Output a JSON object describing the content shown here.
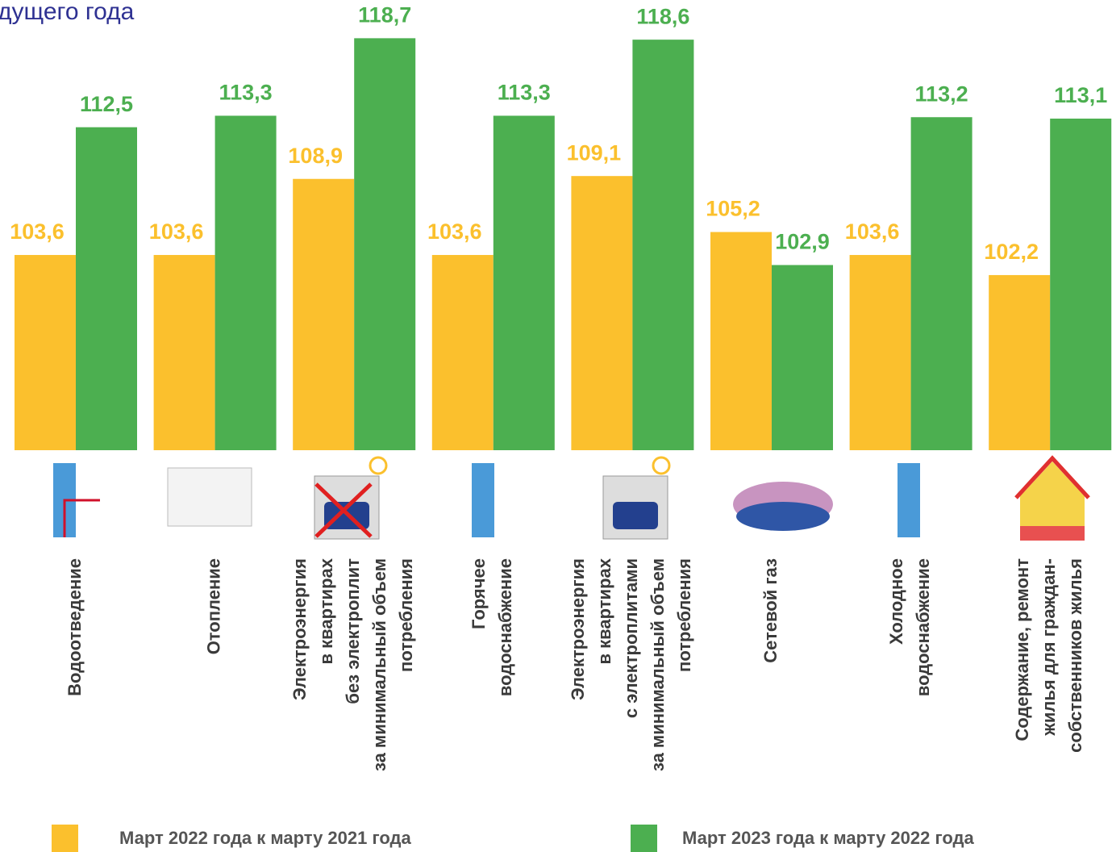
{
  "chart_data": {
    "type": "bar",
    "title": "дущего года",
    "categories": [
      [
        "Водоотведение"
      ],
      [
        "Отопление"
      ],
      [
        "Электроэнергия",
        "в квартирах",
        "без электроплит",
        "за минимальный объем",
        "потребления"
      ],
      [
        "Горячее",
        "водоснабжение"
      ],
      [
        "Электроэнергия",
        "в квартирах",
        "с электроплитами",
        "за минимальный объем",
        "потребления"
      ],
      [
        "Сетевой газ"
      ],
      [
        "Холодное",
        "водоснабжение"
      ],
      [
        "Содержание, ремонт",
        "жилья для граждан-",
        "собственников жилья"
      ]
    ],
    "series": [
      {
        "name": "Март 2022 года к марту 2021 года",
        "color": "#fbc02d",
        "values": [
          103.6,
          103.6,
          108.9,
          103.6,
          109.1,
          105.2,
          103.6,
          102.2
        ],
        "value_labels": [
          "103,6",
          "103,6",
          "108,9",
          "103,6",
          "109,1",
          "105,2",
          "103,6",
          "102,2"
        ]
      },
      {
        "name": "Март 2023 года к марту 2022 года",
        "color": "#4caf50",
        "values": [
          112.5,
          113.3,
          118.7,
          113.3,
          118.6,
          102.9,
          113.2,
          113.1
        ],
        "value_labels": [
          "112,5",
          "113,3",
          "118,7",
          "113,3",
          "118,6",
          "102,9",
          "113,2",
          "113,1"
        ]
      }
    ],
    "ylim": [
      90,
      121.7
    ],
    "legend": "bottom"
  }
}
